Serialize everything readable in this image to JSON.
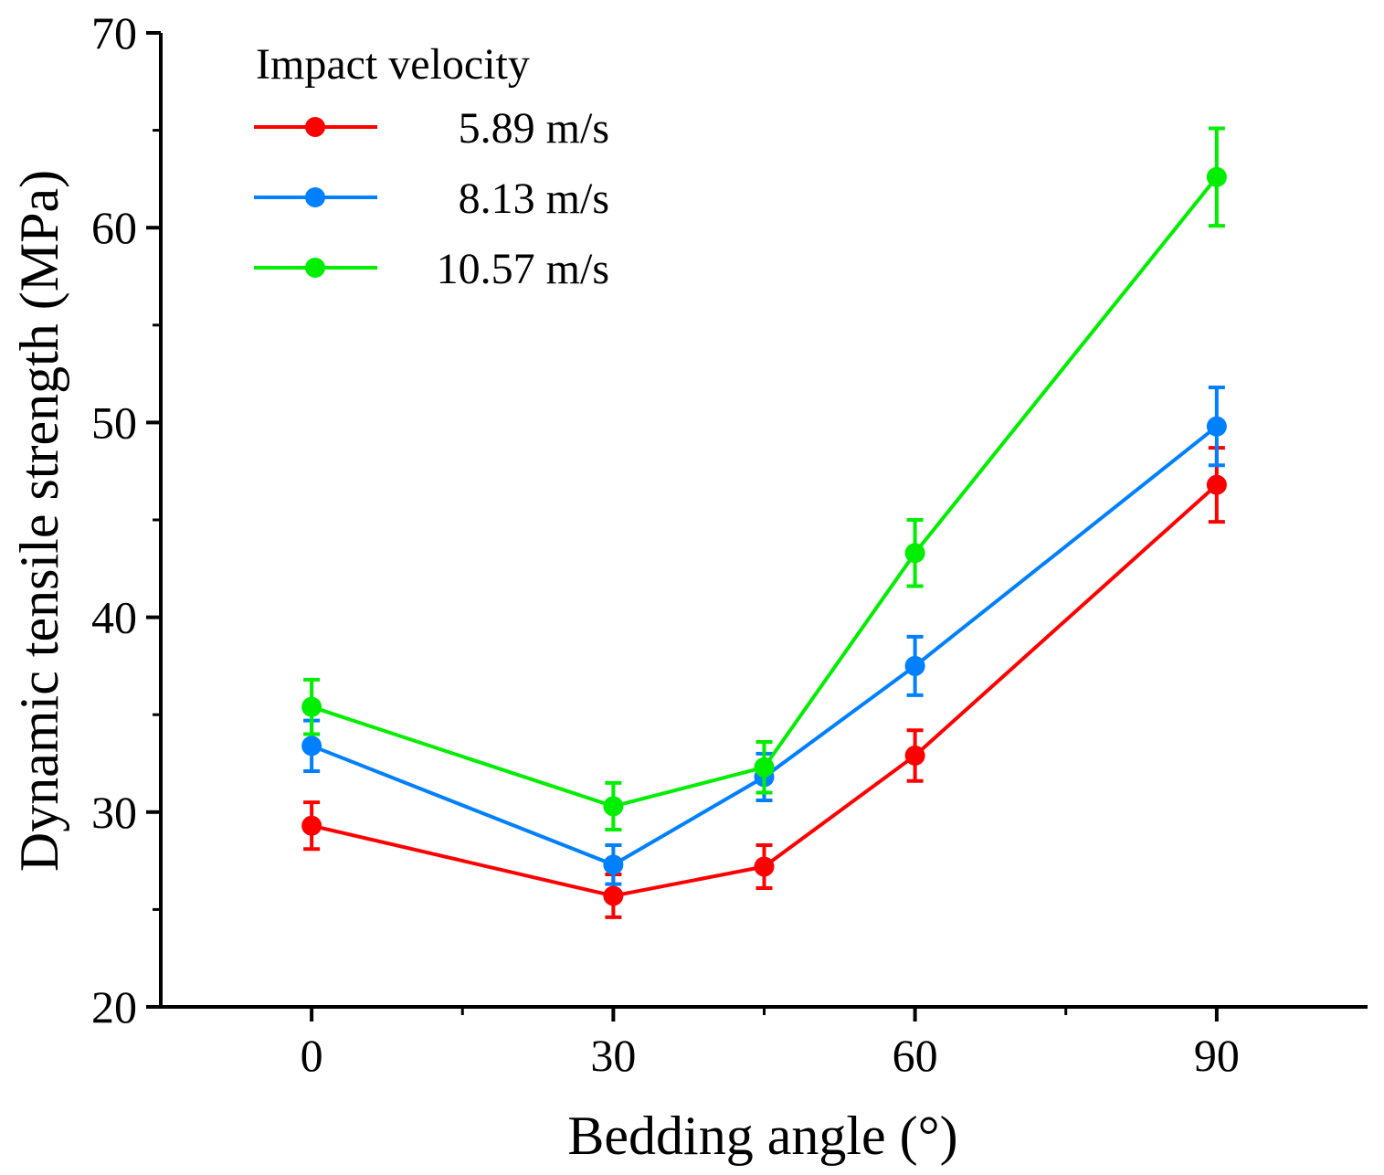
{
  "chart_data": {
    "type": "line",
    "title": "",
    "xlabel": "Bedding angle (°)",
    "ylabel": "Dynamic tensile strength (MPa)",
    "xlim": [
      -15,
      105
    ],
    "ylim": [
      20,
      70
    ],
    "xticks": [
      0,
      30,
      60,
      90
    ],
    "xticks_minor": [
      15,
      45,
      75
    ],
    "yticks": [
      20,
      30,
      40,
      50,
      60,
      70
    ],
    "yticks_minor": [
      25,
      35,
      45,
      55,
      65
    ],
    "x": [
      0,
      30,
      45,
      60,
      90
    ],
    "legend_title": "Impact velocity",
    "legend_position": "top-left",
    "series": [
      {
        "name": "5.89 m/s",
        "color": "#ff0000",
        "values": [
          29.3,
          25.7,
          27.2,
          32.9,
          46.8
        ],
        "errors": [
          1.2,
          1.1,
          1.1,
          1.3,
          1.9
        ]
      },
      {
        "name": "8.13 m/s",
        "color": "#0080ff",
        "values": [
          33.4,
          27.3,
          31.8,
          37.5,
          49.8
        ],
        "errors": [
          1.3,
          1.0,
          1.2,
          1.5,
          2.0
        ]
      },
      {
        "name": "10.57 m/s",
        "color": "#00ee00",
        "values": [
          35.4,
          30.3,
          32.3,
          43.3,
          62.6
        ],
        "errors": [
          1.4,
          1.2,
          1.3,
          1.7,
          2.5
        ]
      }
    ]
  }
}
